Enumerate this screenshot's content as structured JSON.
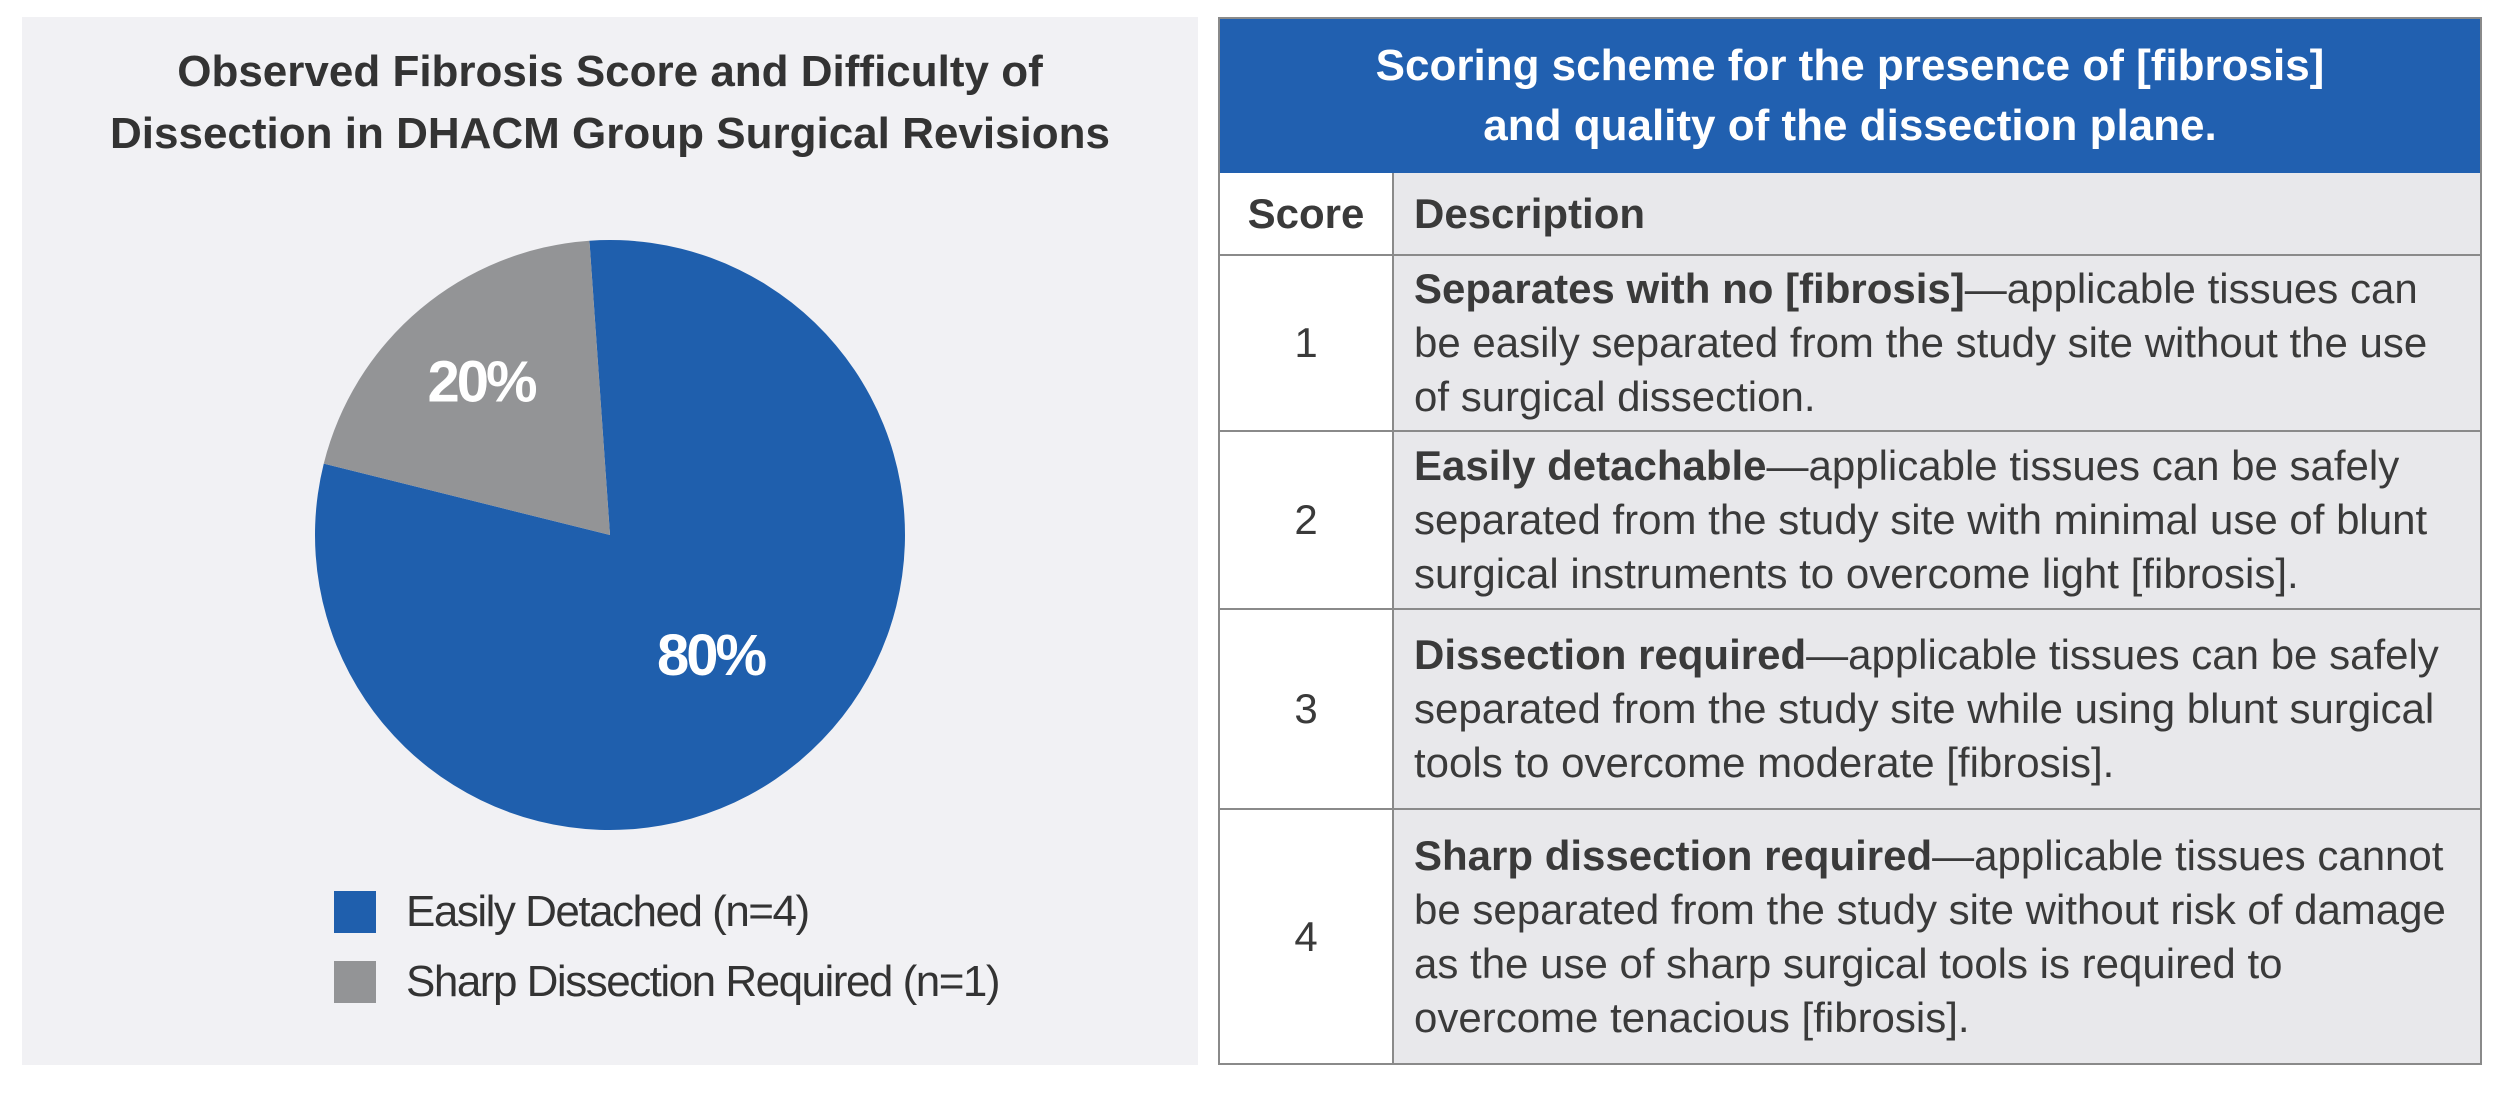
{
  "chart_data": {
    "type": "pie",
    "title_lines": [
      "Observed Fibrosis Score and Difficulty of",
      "Dissection in DHACM Group Surgical Revisions"
    ],
    "slices": [
      {
        "label": "Easily Detached (n=4)",
        "value": 80,
        "display": "80%",
        "color": "#1f5fad"
      },
      {
        "label": "Sharp Dissection Required (n=1)",
        "value": 20,
        "display": "20%",
        "color": "#939496"
      }
    ],
    "legend_position": "bottom"
  },
  "table": {
    "title_lines": [
      "Scoring scheme for the presence of [fibrosis]",
      "and quality of the dissection plane."
    ],
    "header_color": "#2160b0",
    "columns": [
      "Score",
      "Description"
    ],
    "rows": [
      {
        "score": "1",
        "term": "Separates with no [fibrosis]",
        "text": "—applicable tissues can be easily separated from the study site without the use of surgical dissection."
      },
      {
        "score": "2",
        "term": "Easily detachable",
        "text": "—applicable tissues can be safely separated from the study site with minimal use of blunt surgical instruments to overcome light [fibrosis]."
      },
      {
        "score": "3",
        "term": "Dissection required",
        "text": "—applicable tissues can be safely separated from the study site while using blunt surgical tools to overcome moderate [fibrosis]."
      },
      {
        "score": "4",
        "term": "Sharp dissection required",
        "text": "—applicable tissues cannot be separated from the study site without risk of damage as the use of sharp surgical tools is required to overcome tenacious [fibrosis]."
      }
    ]
  }
}
